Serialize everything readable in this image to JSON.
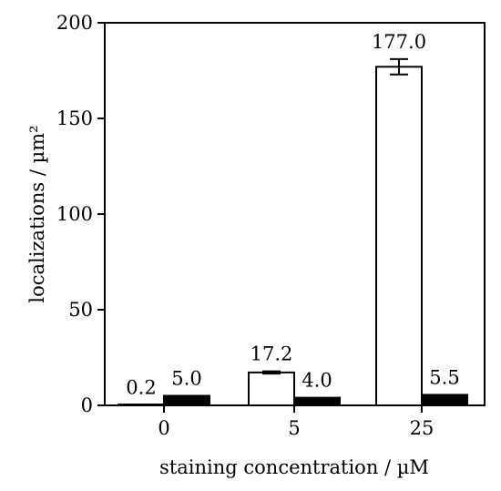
{
  "chart_data": {
    "type": "bar",
    "categories": [
      "0",
      "5",
      "25"
    ],
    "series": [
      {
        "values": [
          0.2,
          17.2,
          177.0
        ],
        "errors": [
          0,
          0.6,
          4.0
        ],
        "fill": "#ffffff"
      },
      {
        "values": [
          5.0,
          4.0,
          5.5
        ],
        "fill": "#000000"
      }
    ],
    "data_labels": [
      [
        "0.2",
        "17.2",
        "177.0"
      ],
      [
        "5.0",
        "4.0",
        "5.5"
      ]
    ],
    "xlabel": "staining concentration / µM",
    "ylabel": "localizations / µm²",
    "ylim": [
      0,
      200
    ],
    "yticks": [
      0,
      50,
      100,
      150,
      200
    ],
    "grid": false,
    "legend": "none"
  }
}
